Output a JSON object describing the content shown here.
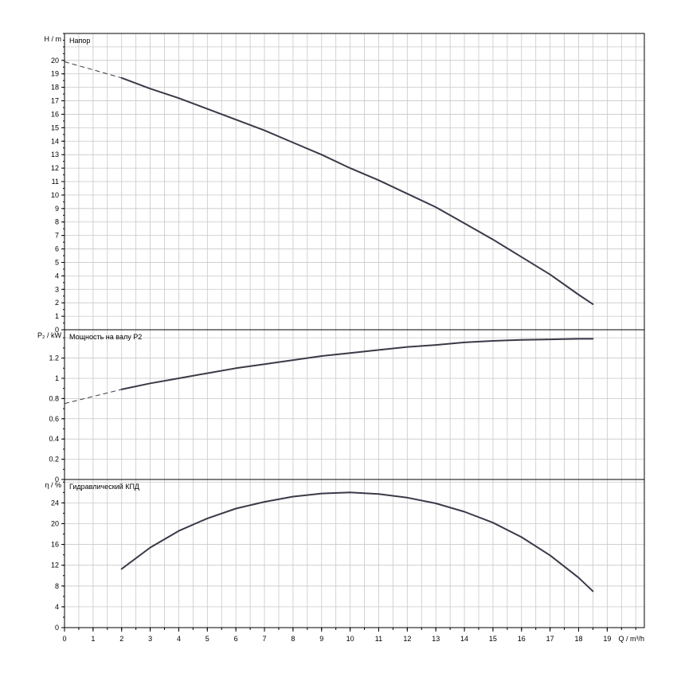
{
  "chart_data": [
    {
      "type": "line",
      "id": "head",
      "title": "Напор",
      "ylabel": "H / m",
      "ylim": [
        0,
        22
      ],
      "yticks": [
        0,
        1,
        2,
        3,
        4,
        5,
        6,
        7,
        8,
        9,
        10,
        11,
        12,
        13,
        14,
        15,
        16,
        17,
        18,
        19,
        20
      ],
      "grid": true,
      "series": [
        {
          "style": "solid",
          "x": [
            2,
            3,
            4,
            5,
            6,
            7,
            8,
            9,
            10,
            11,
            12,
            13,
            14,
            15,
            16,
            17,
            18,
            18.5
          ],
          "values": [
            18.7,
            17.9,
            17.2,
            16.4,
            15.6,
            14.8,
            13.9,
            13.0,
            12.0,
            11.1,
            10.1,
            9.1,
            7.9,
            6.7,
            5.4,
            4.1,
            2.6,
            1.9
          ]
        },
        {
          "style": "dashed",
          "x": [
            0,
            2
          ],
          "values": [
            19.9,
            18.7
          ]
        }
      ]
    },
    {
      "type": "line",
      "id": "power",
      "title": "Мощность на валу P2",
      "ylabel": "P₂ / kW",
      "ylim": [
        0,
        1.48
      ],
      "yticks": [
        0,
        0.2,
        0.4,
        0.6,
        0.8,
        1,
        1.2
      ],
      "grid": true,
      "series": [
        {
          "style": "solid",
          "x": [
            2,
            3,
            4,
            5,
            6,
            7,
            8,
            9,
            10,
            11,
            12,
            13,
            14,
            15,
            16,
            17,
            18,
            18.5
          ],
          "values": [
            0.89,
            0.95,
            1.0,
            1.05,
            1.1,
            1.14,
            1.18,
            1.22,
            1.25,
            1.28,
            1.31,
            1.33,
            1.355,
            1.37,
            1.38,
            1.385,
            1.39,
            1.39
          ]
        },
        {
          "style": "dashed",
          "x": [
            0,
            2
          ],
          "values": [
            0.75,
            0.89
          ]
        }
      ]
    },
    {
      "type": "line",
      "id": "efficiency",
      "title": "Гидравлический КПД",
      "ylabel": "η / %",
      "ylim": [
        0,
        28.5
      ],
      "yticks": [
        0,
        4,
        8,
        12,
        16,
        20,
        24
      ],
      "grid": true,
      "series": [
        {
          "style": "solid",
          "x": [
            2,
            3,
            4,
            5,
            6,
            7,
            8,
            9,
            10,
            11,
            12,
            13,
            14,
            15,
            16,
            17,
            18,
            18.5
          ],
          "values": [
            11.3,
            15.4,
            18.6,
            21.0,
            22.9,
            24.2,
            25.2,
            25.8,
            26.0,
            25.7,
            25.0,
            23.9,
            22.3,
            20.2,
            17.4,
            13.9,
            9.6,
            7.0
          ]
        }
      ]
    }
  ],
  "x_axis": {
    "label": "Q / m³/h",
    "ticks": [
      0,
      1,
      2,
      3,
      4,
      5,
      6,
      7,
      8,
      9,
      10,
      11,
      12,
      13,
      14,
      15,
      16,
      17,
      18,
      19
    ],
    "xlim": [
      0,
      20.3
    ]
  }
}
